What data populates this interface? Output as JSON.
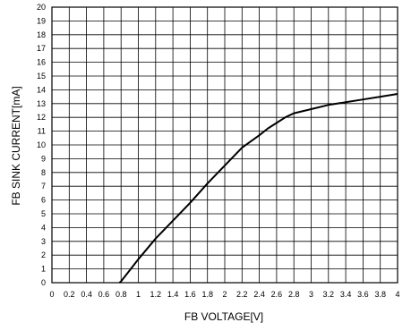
{
  "chart_data": {
    "type": "line",
    "title": "",
    "xlabel": "FB VOLTAGE[V]",
    "ylabel": "FB SINK CURRENT[mA]",
    "xlim": [
      0,
      4
    ],
    "ylim": [
      0,
      20
    ],
    "grid": true,
    "legend": "none",
    "x_ticks": [
      0,
      0.2,
      0.4,
      0.6,
      0.8,
      1,
      1.2,
      1.4,
      1.6,
      1.8,
      2,
      2.2,
      2.4,
      2.6,
      2.8,
      3,
      3.2,
      3.4,
      3.6,
      3.8,
      4
    ],
    "x_tick_labels": [
      "0",
      "0.2",
      "0.4",
      "0.6",
      "0.8",
      "1",
      "1.2",
      "1.4",
      "1.6",
      "1.8",
      "2",
      "2.2",
      "2.4",
      "2.6",
      "2.8",
      "3",
      "3.2",
      "3.4",
      "3.6",
      "3.8",
      "4"
    ],
    "y_ticks": [
      0,
      1,
      2,
      3,
      4,
      5,
      6,
      7,
      8,
      9,
      10,
      11,
      12,
      13,
      14,
      15,
      16,
      17,
      18,
      19,
      20
    ],
    "y_tick_labels": [
      "0",
      "1",
      "2",
      "3",
      "4",
      "5",
      "6",
      "7",
      "8",
      "9",
      "10",
      "11",
      "12",
      "13",
      "14",
      "15",
      "16",
      "17",
      "18",
      "19",
      "20"
    ],
    "line_color": "#000000",
    "series": [
      {
        "x": [
          0.78,
          0.8,
          0.9,
          1.0,
          1.2,
          1.4,
          1.6,
          1.8,
          2.0,
          2.2,
          2.4,
          2.5,
          2.6,
          2.7,
          2.8,
          3.0,
          3.2,
          3.4,
          3.6,
          3.8,
          4.0
        ],
        "y": [
          0.0,
          0.1,
          0.9,
          1.7,
          3.2,
          4.5,
          5.8,
          7.2,
          8.5,
          9.8,
          10.7,
          11.2,
          11.6,
          12.0,
          12.3,
          12.6,
          12.9,
          13.1,
          13.3,
          13.5,
          13.7
        ]
      }
    ]
  }
}
